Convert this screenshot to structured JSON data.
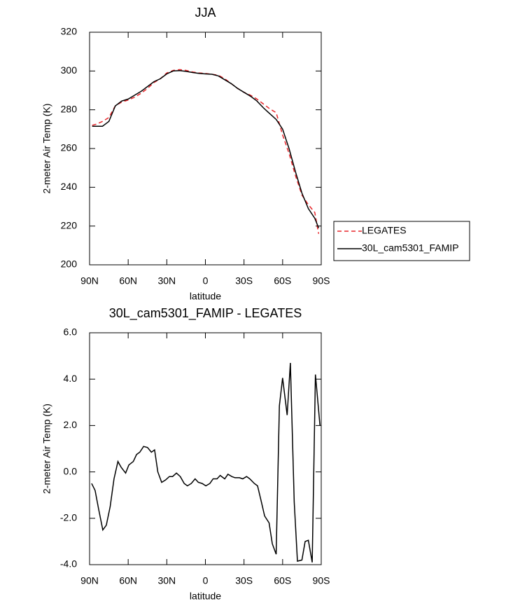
{
  "chart_data": [
    {
      "type": "line",
      "title": "JJA",
      "xlabel": "latitude",
      "ylabel": "2-meter Air Temp (K)",
      "x": [
        88,
        85,
        80,
        75,
        70,
        65,
        60,
        55,
        50,
        45,
        40,
        35,
        30,
        25,
        20,
        15,
        10,
        5,
        0,
        -5,
        -10,
        -15,
        -20,
        -25,
        -30,
        -35,
        -40,
        -45,
        -50,
        -55,
        -60,
        -65,
        -70,
        -75,
        -80,
        -85,
        -88
      ],
      "series": [
        {
          "name": "LEGATES",
          "color": "#e8262a",
          "dash": true,
          "values": [
            272,
            272.5,
            274,
            276,
            282,
            284,
            285,
            286.5,
            288.5,
            291,
            294,
            296,
            299,
            300.3,
            300.7,
            300.3,
            299.5,
            299,
            298.7,
            298.3,
            297.8,
            296,
            293.5,
            291,
            289,
            287.5,
            285.5,
            283,
            280.5,
            278.5,
            267,
            257.5,
            246,
            236,
            231,
            227,
            216
          ]
        },
        {
          "name": "30L_cam5301_FAMIP",
          "color": "#000000",
          "dash": false,
          "values": [
            271.5,
            271.5,
            271.5,
            274,
            282,
            284.5,
            285.5,
            287.5,
            289.5,
            292,
            294.5,
            296,
            298.5,
            300,
            300.2,
            299.8,
            299.2,
            298.8,
            298.5,
            298.3,
            297.5,
            295.5,
            293.5,
            291,
            289,
            287,
            284.5,
            281,
            278,
            275,
            270,
            260,
            248,
            237,
            229,
            224,
            219
          ]
        }
      ],
      "xlim": [
        90,
        -90
      ],
      "xticks": [
        {
          "value": 90,
          "label": "90N"
        },
        {
          "value": 60,
          "label": "60N"
        },
        {
          "value": 30,
          "label": "30N"
        },
        0,
        {
          "value": -30,
          "label": "30S"
        },
        {
          "value": -60,
          "label": "60S"
        },
        {
          "value": -90,
          "label": "90S"
        }
      ],
      "ylim": [
        200,
        320
      ],
      "yticks": [
        200,
        220,
        240,
        260,
        280,
        300,
        320
      ],
      "legend": "outside-right"
    },
    {
      "type": "line",
      "title": "30L_cam5301_FAMIP - LEGATES",
      "xlabel": "latitude",
      "ylabel": "2-meter Air Temp (K)",
      "x": [
        88.4,
        85.7,
        83,
        79.7,
        77,
        74,
        71,
        68,
        65.5,
        62,
        59.5,
        56,
        53.5,
        51,
        48,
        45,
        42,
        39.5,
        37,
        34,
        31,
        28,
        25.5,
        22.5,
        19.5,
        16.5,
        14,
        11,
        8,
        5.5,
        2.5,
        -0.3,
        -3.5,
        -6,
        -9,
        -11.5,
        -15,
        -17.5,
        -20.5,
        -23,
        -26.5,
        -29,
        -32,
        -34.5,
        -38,
        -40.5,
        -43.5,
        -46,
        -49.5,
        -52,
        -55,
        -57.5,
        -60,
        -63.5,
        -66,
        -69,
        -71.5,
        -75,
        -77.5,
        -80,
        -83,
        -85.5,
        -89
      ],
      "values": [
        -0.5,
        -0.8,
        -1.6,
        -2.5,
        -2.3,
        -1.5,
        -0.3,
        0.45,
        0.2,
        -0.05,
        0.3,
        0.45,
        0.75,
        0.85,
        1.1,
        1.05,
        0.85,
        0.95,
        0,
        -0.45,
        -0.35,
        -0.2,
        -0.2,
        -0.05,
        -0.2,
        -0.5,
        -0.6,
        -0.5,
        -0.3,
        -0.45,
        -0.5,
        -0.6,
        -0.5,
        -0.3,
        -0.3,
        -0.15,
        -0.3,
        -0.1,
        -0.2,
        -0.25,
        -0.25,
        -0.3,
        -0.2,
        -0.3,
        -0.5,
        -0.6,
        -1.3,
        -1.9,
        -2.2,
        -3.1,
        -3.55,
        2.85,
        4.05,
        2.45,
        4.7,
        -1.3,
        -3.85,
        -3.8,
        -3.0,
        -2.95,
        -3.9,
        4.2,
        2.0
      ],
      "color": "#000000",
      "xlim": [
        90,
        -90
      ],
      "xticks": [
        {
          "value": 90,
          "label": "90N"
        },
        {
          "value": 60,
          "label": "60N"
        },
        {
          "value": 30,
          "label": "30N"
        },
        0,
        {
          "value": -30,
          "label": "30S"
        },
        {
          "value": -60,
          "label": "60S"
        },
        {
          "value": -90,
          "label": "90S"
        }
      ],
      "ylim": [
        -4,
        6
      ],
      "yticks": [
        {
          "value": -4,
          "label": "-4.0"
        },
        {
          "value": -2,
          "label": "-2.0"
        },
        {
          "value": 0,
          "label": "0.0"
        },
        {
          "value": 2,
          "label": "2.0"
        },
        {
          "value": 4,
          "label": "4.0"
        },
        {
          "value": 6,
          "label": "6.0"
        }
      ]
    }
  ]
}
